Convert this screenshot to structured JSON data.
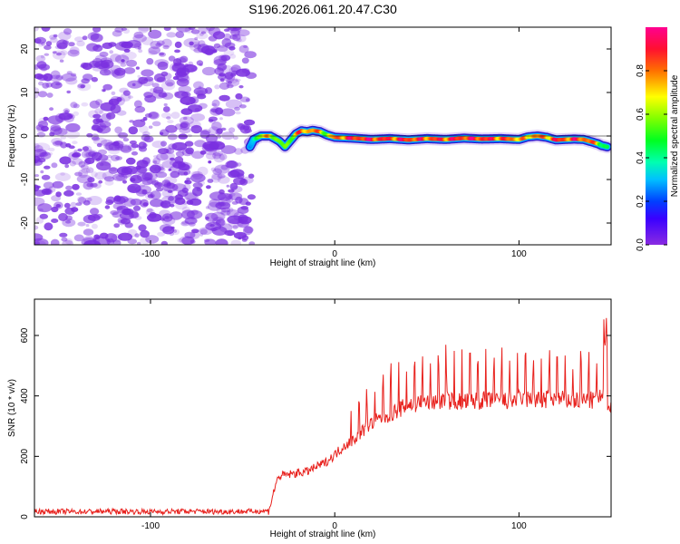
{
  "title": "S196.2026.061.20.47.C30",
  "chart_data": [
    {
      "type": "heatmap",
      "panel": "spectrogram",
      "xlabel": "Height of straight line (km)",
      "ylabel": "Frequency (Hz)",
      "xlim": [
        -163,
        150
      ],
      "ylim": [
        -25,
        25
      ],
      "x_ticks": [
        -100,
        0,
        100
      ],
      "y_ticks": [
        -20,
        -10,
        0,
        10,
        20
      ],
      "noise_region_x": [
        -163,
        -45
      ],
      "noise_color": "#7a2fe0",
      "trace": {
        "x": [
          -46,
          -44,
          -40,
          -35,
          -30,
          -27,
          -24,
          -21,
          -18,
          -15,
          -12,
          -8,
          -4,
          0,
          10,
          20,
          30,
          40,
          50,
          60,
          70,
          80,
          90,
          100,
          105,
          110,
          115,
          120,
          125,
          130,
          135,
          140,
          143,
          145,
          148
        ],
        "y": [
          -2.5,
          -0.8,
          0,
          0,
          -1.2,
          -2.5,
          -1.0,
          0.5,
          1.2,
          1.0,
          1.3,
          1.0,
          0.2,
          -0.3,
          -0.5,
          -0.8,
          -0.6,
          -0.9,
          -0.6,
          -0.8,
          -0.5,
          -0.7,
          -0.6,
          -0.8,
          -0.2,
          0,
          -0.3,
          -0.9,
          -0.8,
          -0.7,
          -0.8,
          -1.4,
          -1.8,
          -2.2,
          -2.5
        ],
        "amplitude": [
          0.25,
          0.4,
          0.65,
          0.8,
          0.55,
          0.6,
          0.6,
          0.75,
          0.9,
          0.8,
          0.88,
          0.8,
          0.6,
          0.85,
          0.95,
          0.97,
          0.92,
          0.95,
          0.9,
          0.93,
          0.95,
          0.96,
          0.9,
          0.85,
          0.75,
          0.88,
          0.8,
          0.95,
          0.9,
          0.93,
          0.9,
          0.9,
          0.7,
          0.55,
          0.45
        ]
      },
      "colorbar": {
        "label": "Normalized spectral amplitude",
        "ticks": [
          "0.0",
          "0.2",
          "0.4",
          "0.6",
          "0.8"
        ],
        "range": [
          0,
          1
        ]
      }
    },
    {
      "type": "line",
      "panel": "snr",
      "xlabel": "Height of straight line (km)",
      "ylabel": "SNR (10 * v/v)",
      "xlim": [
        -163,
        150
      ],
      "ylim": [
        0,
        720
      ],
      "x_ticks": [
        -100,
        0,
        100
      ],
      "y_ticks": [
        0,
        200,
        400,
        600
      ],
      "series": [
        {
          "name": "SNR",
          "color": "#e8211d",
          "x": [
            -163,
            -140,
            -120,
            -100,
            -80,
            -60,
            -45,
            -36,
            -34,
            -32,
            -30,
            -25,
            -20,
            -15,
            -10,
            -5,
            0,
            5,
            10,
            15,
            20,
            25,
            30,
            35,
            40,
            50,
            60,
            70,
            80,
            90,
            100,
            110,
            120,
            130,
            140,
            145,
            147,
            150
          ],
          "y": [
            18,
            17,
            18,
            17,
            18,
            17,
            18,
            20,
            60,
            110,
            135,
            140,
            145,
            150,
            165,
            180,
            205,
            235,
            255,
            285,
            310,
            325,
            340,
            355,
            370,
            380,
            385,
            380,
            385,
            380,
            390,
            385,
            390,
            385,
            385,
            395,
            400,
            355
          ]
        }
      ]
    }
  ]
}
